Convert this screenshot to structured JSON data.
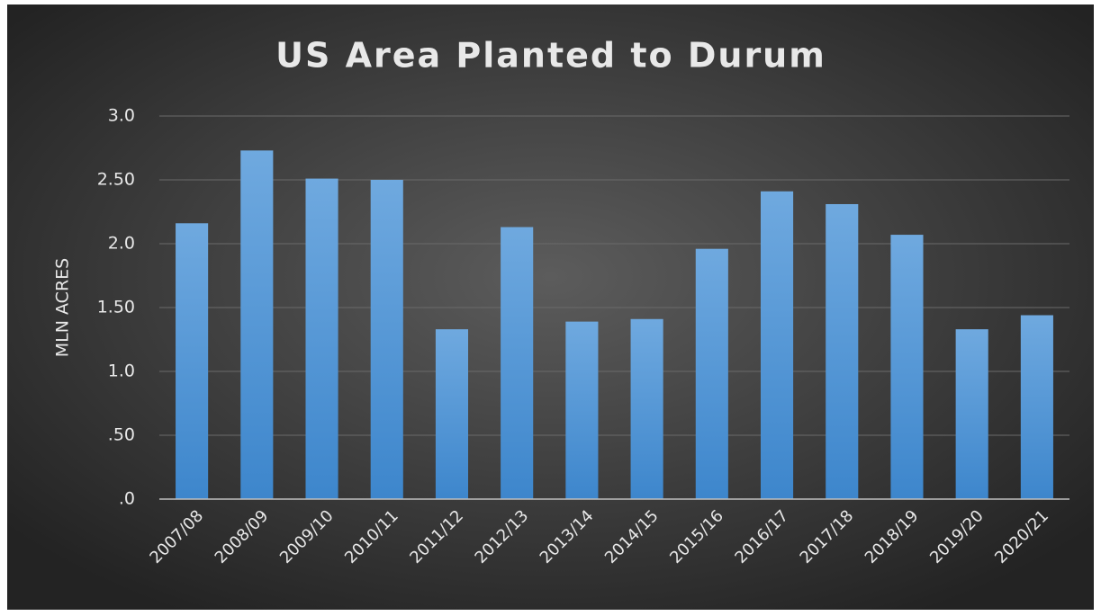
{
  "chart_data": {
    "type": "bar",
    "title": "US Area Planted to Durum",
    "y_label": "MLN ACRES",
    "categories": [
      "2007/08",
      "2008/09",
      "2009/10",
      "2010/11",
      "2011/12",
      "2012/13",
      "2013/14",
      "2014/15",
      "2015/16",
      "2016/17",
      "2017/18",
      "2018/19",
      "2019/20",
      "2020/21"
    ],
    "values": [
      2.16,
      2.73,
      2.51,
      2.5,
      1.33,
      2.13,
      1.39,
      1.41,
      1.96,
      2.41,
      2.31,
      2.07,
      1.33,
      1.44
    ],
    "color": "#5b9bd5",
    "ylim": [
      0,
      3
    ],
    "yticks": [
      {
        "value": 0,
        "label": ".0"
      },
      {
        "value": 0.5,
        "label": ".50"
      },
      {
        "value": 1,
        "label": "1.0"
      },
      {
        "value": 1.5,
        "label": "1.50"
      },
      {
        "value": 2,
        "label": "2.0"
      },
      {
        "value": 2.5,
        "label": "2.50"
      },
      {
        "value": 3,
        "label": "3.0"
      }
    ],
    "grid": true
  }
}
